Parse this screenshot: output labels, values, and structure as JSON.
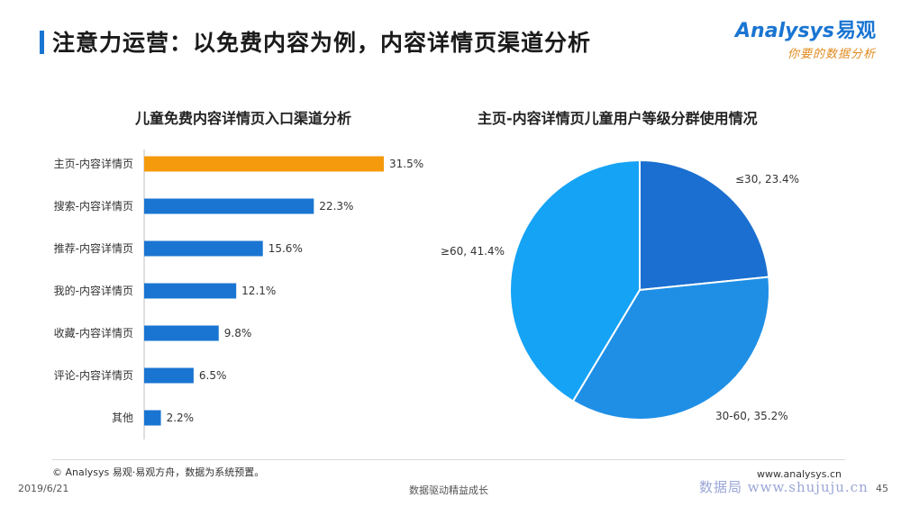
{
  "header": {
    "title": "注意力运营：以免费内容为例，内容详情页渠道分析",
    "brand_en": "Analysys",
    "brand_cn": "易观",
    "brand_slogan": "你要的数据分析"
  },
  "chart_data": [
    {
      "type": "bar",
      "orientation": "horizontal",
      "title": "儿童免费内容详情页入口渠道分析",
      "categories": [
        "主页-内容详情页",
        "搜索-内容详情页",
        "推荐-内容详情页",
        "我的-内容详情页",
        "收藏-内容详情页",
        "评论-内容详情页",
        "其他"
      ],
      "values": [
        31.5,
        22.3,
        15.6,
        12.1,
        9.8,
        6.5,
        2.2
      ],
      "value_labels": [
        "31.5%",
        "22.3%",
        "15.6%",
        "12.1%",
        "9.8%",
        "6.5%",
        "2.2%"
      ],
      "highlight_index": 0,
      "colors": {
        "highlight": "#f59a0c",
        "default": "#1a75d2"
      },
      "xlim": [
        0,
        35
      ],
      "grid": false
    },
    {
      "type": "pie",
      "title": "主页-内容详情页儿童用户等级分群使用情况",
      "slices": [
        {
          "label": "≤30, 23.4%",
          "value": 23.4,
          "color": "#1a6fd0"
        },
        {
          "label": "30-60, 35.2%",
          "value": 35.2,
          "color": "#1f8fe6"
        },
        {
          "label": "≥60, 41.4%",
          "value": 41.4,
          "color": "#15a3f5"
        }
      ]
    }
  ],
  "footer": {
    "source_note": "© Analysys 易观·易观方舟，数据为系统预置。",
    "date": "2019/6/21",
    "slogan": "数据驱动精益成长",
    "website": "www.analysys.cn",
    "page_number": "45",
    "stamp": "数据局 www.shujuju.cn"
  }
}
